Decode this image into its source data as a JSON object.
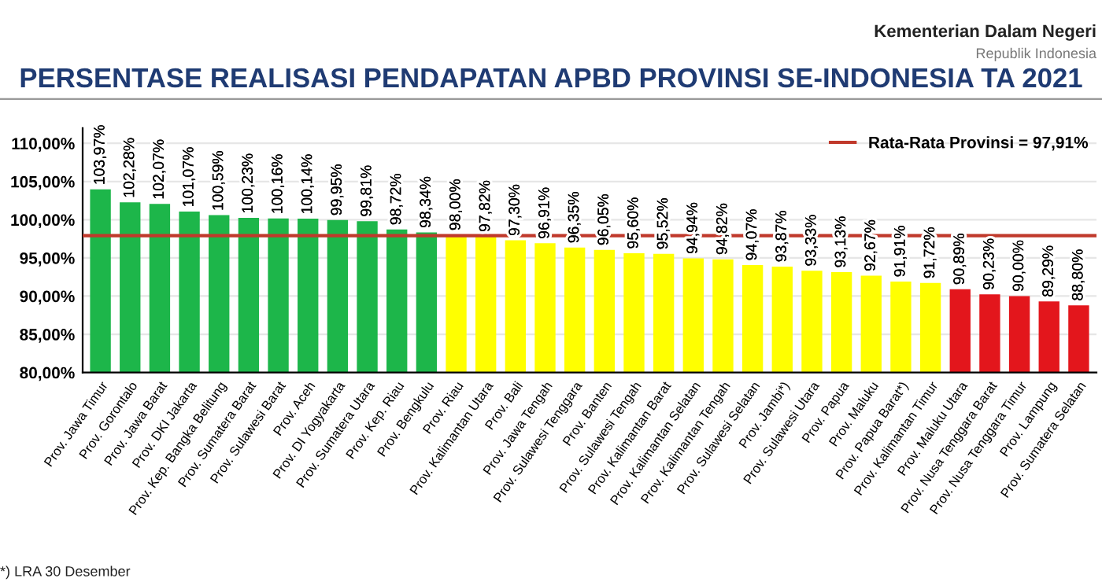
{
  "chart_data": {
    "type": "bar",
    "title": "PERSENTASE REALISASI PENDAPATAN APBD PROVINSI SE-INDONESIA TA 2021",
    "annotations": [
      "Kementerian Dalam Negeri",
      "Republik Indonesia",
      "*) LRA 30 Desember"
    ],
    "categories": [
      "Prov. Jawa Timur",
      "Prov. Gorontalo",
      "Prov. Jawa Barat",
      "Prov. DKI Jakarta",
      "Prov. Kep. Bangka Belitung",
      "Prov. Sumatera Barat",
      "Prov. Sulawesi Barat",
      "Prov. Aceh",
      "Prov. DI Yogyakarta",
      "Prov. Sumatera Utara",
      "Prov. Kep. Riau",
      "Prov. Bengkulu",
      "Prov. Riau",
      "Prov. Kalimantan Utara",
      "Prov. Bali",
      "Prov. Jawa Tengah",
      "Prov. Sulawesi Tenggara",
      "Prov. Banten",
      "Prov. Sulawesi Tengah",
      "Prov. Kalimantan Barat",
      "Prov. Kalimantan Selatan",
      "Prov. Kalimantan Tengah",
      "Prov. Sulawesi Selatan",
      "Prov. Jambi*)",
      "Prov. Sulawesi Utara",
      "Prov. Papua",
      "Prov. Maluku",
      "Prov. Papua Barat*)",
      "Prov. Kalimantan Timur",
      "Prov. Maluku Utara",
      "Prov. Nusa Tenggara Barat",
      "Prov. Nusa Tenggara Timur",
      "Prov. Lampung",
      "Prov. Sumatera Selatan"
    ],
    "values": [
      103.97,
      102.28,
      102.07,
      101.07,
      100.59,
      100.23,
      100.16,
      100.14,
      99.95,
      99.81,
      98.72,
      98.34,
      98.0,
      97.82,
      97.3,
      96.91,
      96.35,
      96.05,
      95.6,
      95.52,
      94.94,
      94.82,
      94.07,
      93.87,
      93.33,
      93.13,
      92.67,
      91.91,
      91.72,
      90.89,
      90.23,
      90.0,
      89.29,
      88.8
    ],
    "value_labels": [
      "103,97%",
      "102,28%",
      "102,07%",
      "101,07%",
      "100,59%",
      "100,23%",
      "100,16%",
      "100,14%",
      "99,95%",
      "99,81%",
      "98,72%",
      "98,34%",
      "98,00%",
      "97,82%",
      "97,30%",
      "96,91%",
      "96,35%",
      "96,05%",
      "95,60%",
      "95,52%",
      "94,94%",
      "94,82%",
      "94,07%",
      "93,87%",
      "93,33%",
      "93,13%",
      "92,67%",
      "91,91%",
      "91,72%",
      "90,89%",
      "90,23%",
      "90,00%",
      "89,29%",
      "88,80%"
    ],
    "colors": [
      "#1db64a",
      "#1db64a",
      "#1db64a",
      "#1db64a",
      "#1db64a",
      "#1db64a",
      "#1db64a",
      "#1db64a",
      "#1db64a",
      "#1db64a",
      "#1db64a",
      "#1db64a",
      "#ffff00",
      "#ffff00",
      "#ffff00",
      "#ffff00",
      "#ffff00",
      "#ffff00",
      "#ffff00",
      "#ffff00",
      "#ffff00",
      "#ffff00",
      "#ffff00",
      "#ffff00",
      "#ffff00",
      "#ffff00",
      "#ffff00",
      "#ffff00",
      "#ffff00",
      "#e3161c",
      "#e3161c",
      "#e3161c",
      "#e3161c",
      "#e3161c"
    ],
    "ylim": [
      80,
      112
    ],
    "yticks": [
      {
        "value": 80,
        "label": "80,00%"
      },
      {
        "value": 85,
        "label": "85,00%"
      },
      {
        "value": 90,
        "label": "90,00%"
      },
      {
        "value": 95,
        "label": "95,00%"
      },
      {
        "value": 100,
        "label": "100,00%"
      },
      {
        "value": 105,
        "label": "105,00%"
      },
      {
        "value": 110,
        "label": "110,00%"
      }
    ],
    "ref_lines": [
      {
        "axis": "y",
        "value": 97.91,
        "label": "Rata-Rata Provinsi = 97,91%",
        "color": "#c0392b"
      }
    ],
    "grid": "y",
    "legend": "top right"
  }
}
